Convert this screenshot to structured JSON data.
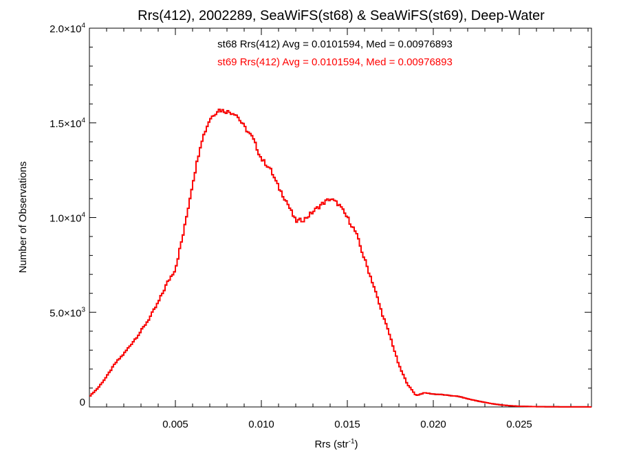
{
  "chart_data": {
    "type": "histogram",
    "title": "Rrs(412), 2002289, SeaWiFS(st68) & SeaWiFS(st69), Deep-Water",
    "xlabel_main": "Rrs (str",
    "xlabel_sup": "-1",
    "xlabel_close": ")",
    "ylabel": "Number of Observations",
    "xlim": [
      0.0,
      0.0292
    ],
    "ylim": [
      0,
      20000
    ],
    "x_ticks": [
      0.005,
      0.01,
      0.015,
      0.02,
      0.025
    ],
    "x_tick_labels": [
      "0.005",
      "0.010",
      "0.015",
      "0.020",
      "0.025"
    ],
    "y_ticks": [
      0,
      5000,
      10000,
      15000,
      20000
    ],
    "y_tick_labels": [
      {
        "mant": "0",
        "exp": ""
      },
      {
        "mant": "5.0×10",
        "exp": "3"
      },
      {
        "mant": "1.0×10",
        "exp": "4"
      },
      {
        "mant": "1.5×10",
        "exp": "4"
      },
      {
        "mant": "2.0×10",
        "exp": "4"
      }
    ],
    "annotations": [
      {
        "text": "st68 Rrs(412) Avg = 0.0101594, Med = 0.00976893",
        "color": "#000000"
      },
      {
        "text": "st69 Rrs(412) Avg = 0.0101594, Med = 0.00976893",
        "color": "#ff0000"
      }
    ],
    "series": [
      {
        "name": "st68",
        "color": "#000000"
      },
      {
        "name": "st69",
        "color": "#ff0000"
      }
    ],
    "bin_width": 0.0001,
    "curve_points": [
      [
        0.0,
        550
      ],
      [
        0.0005,
        1000
      ],
      [
        0.001,
        1600
      ],
      [
        0.0015,
        2300
      ],
      [
        0.002,
        2800
      ],
      [
        0.0025,
        3400
      ],
      [
        0.003,
        4000
      ],
      [
        0.0035,
        4700
      ],
      [
        0.004,
        5500
      ],
      [
        0.0045,
        6500
      ],
      [
        0.005,
        7300
      ],
      [
        0.0055,
        9300
      ],
      [
        0.006,
        11800
      ],
      [
        0.0065,
        14000
      ],
      [
        0.007,
        15200
      ],
      [
        0.0075,
        15700
      ],
      [
        0.008,
        15600
      ],
      [
        0.0085,
        15500
      ],
      [
        0.009,
        14800
      ],
      [
        0.0095,
        14200
      ],
      [
        0.01,
        13100
      ],
      [
        0.0105,
        12600
      ],
      [
        0.011,
        11600
      ],
      [
        0.0115,
        10800
      ],
      [
        0.012,
        9800
      ],
      [
        0.0125,
        9900
      ],
      [
        0.013,
        10300
      ],
      [
        0.0135,
        10700
      ],
      [
        0.014,
        11000
      ],
      [
        0.0145,
        10700
      ],
      [
        0.015,
        10000
      ],
      [
        0.0155,
        9200
      ],
      [
        0.016,
        7800
      ],
      [
        0.0165,
        6500
      ],
      [
        0.017,
        5000
      ],
      [
        0.0175,
        3700
      ],
      [
        0.018,
        2200
      ],
      [
        0.0185,
        1200
      ],
      [
        0.019,
        600
      ],
      [
        0.0195,
        750
      ],
      [
        0.02,
        680
      ],
      [
        0.0205,
        650
      ],
      [
        0.021,
        600
      ],
      [
        0.0215,
        550
      ],
      [
        0.022,
        430
      ],
      [
        0.0225,
        330
      ],
      [
        0.023,
        240
      ],
      [
        0.0235,
        160
      ],
      [
        0.024,
        100
      ],
      [
        0.0245,
        60
      ],
      [
        0.025,
        35
      ],
      [
        0.026,
        15
      ],
      [
        0.027,
        8
      ],
      [
        0.028,
        4
      ],
      [
        0.0292,
        2
      ]
    ]
  }
}
